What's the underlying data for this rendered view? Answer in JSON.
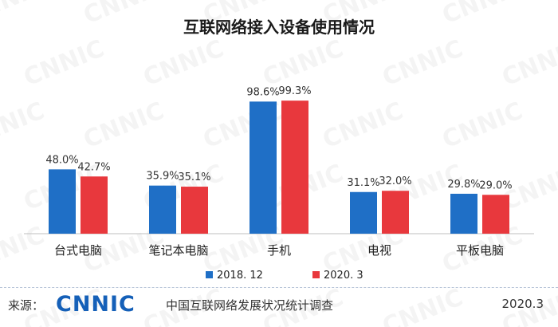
{
  "watermark_text": "CNNIC",
  "chart_data": {
    "type": "bar",
    "title": "互联网络接入设备使用情况",
    "categories": [
      "台式电脑",
      "笔记本电脑",
      "手机",
      "电视",
      "平板电脑"
    ],
    "series": [
      {
        "name": "2018. 12",
        "color": "#1f6fc6",
        "values": [
          48.0,
          35.9,
          98.6,
          31.1,
          29.8
        ],
        "labels": [
          "48.0%",
          "35.9%",
          "98.6%",
          "31.1%",
          "29.8%"
        ]
      },
      {
        "name": "2020. 3",
        "color": "#e8383d",
        "values": [
          42.7,
          35.1,
          99.3,
          32.0,
          29.0
        ],
        "labels": [
          "42.7%",
          "35.1%",
          "99.3%",
          "32.0%",
          "29.0%"
        ]
      }
    ],
    "ylim": [
      0,
      100
    ],
    "grid": false,
    "legend_position": "bottom"
  },
  "footer": {
    "source_label": "来源：",
    "logo_text": "CNNIC",
    "org_name": "中国互联网络发展状况统计调查",
    "date": "2020.3"
  }
}
